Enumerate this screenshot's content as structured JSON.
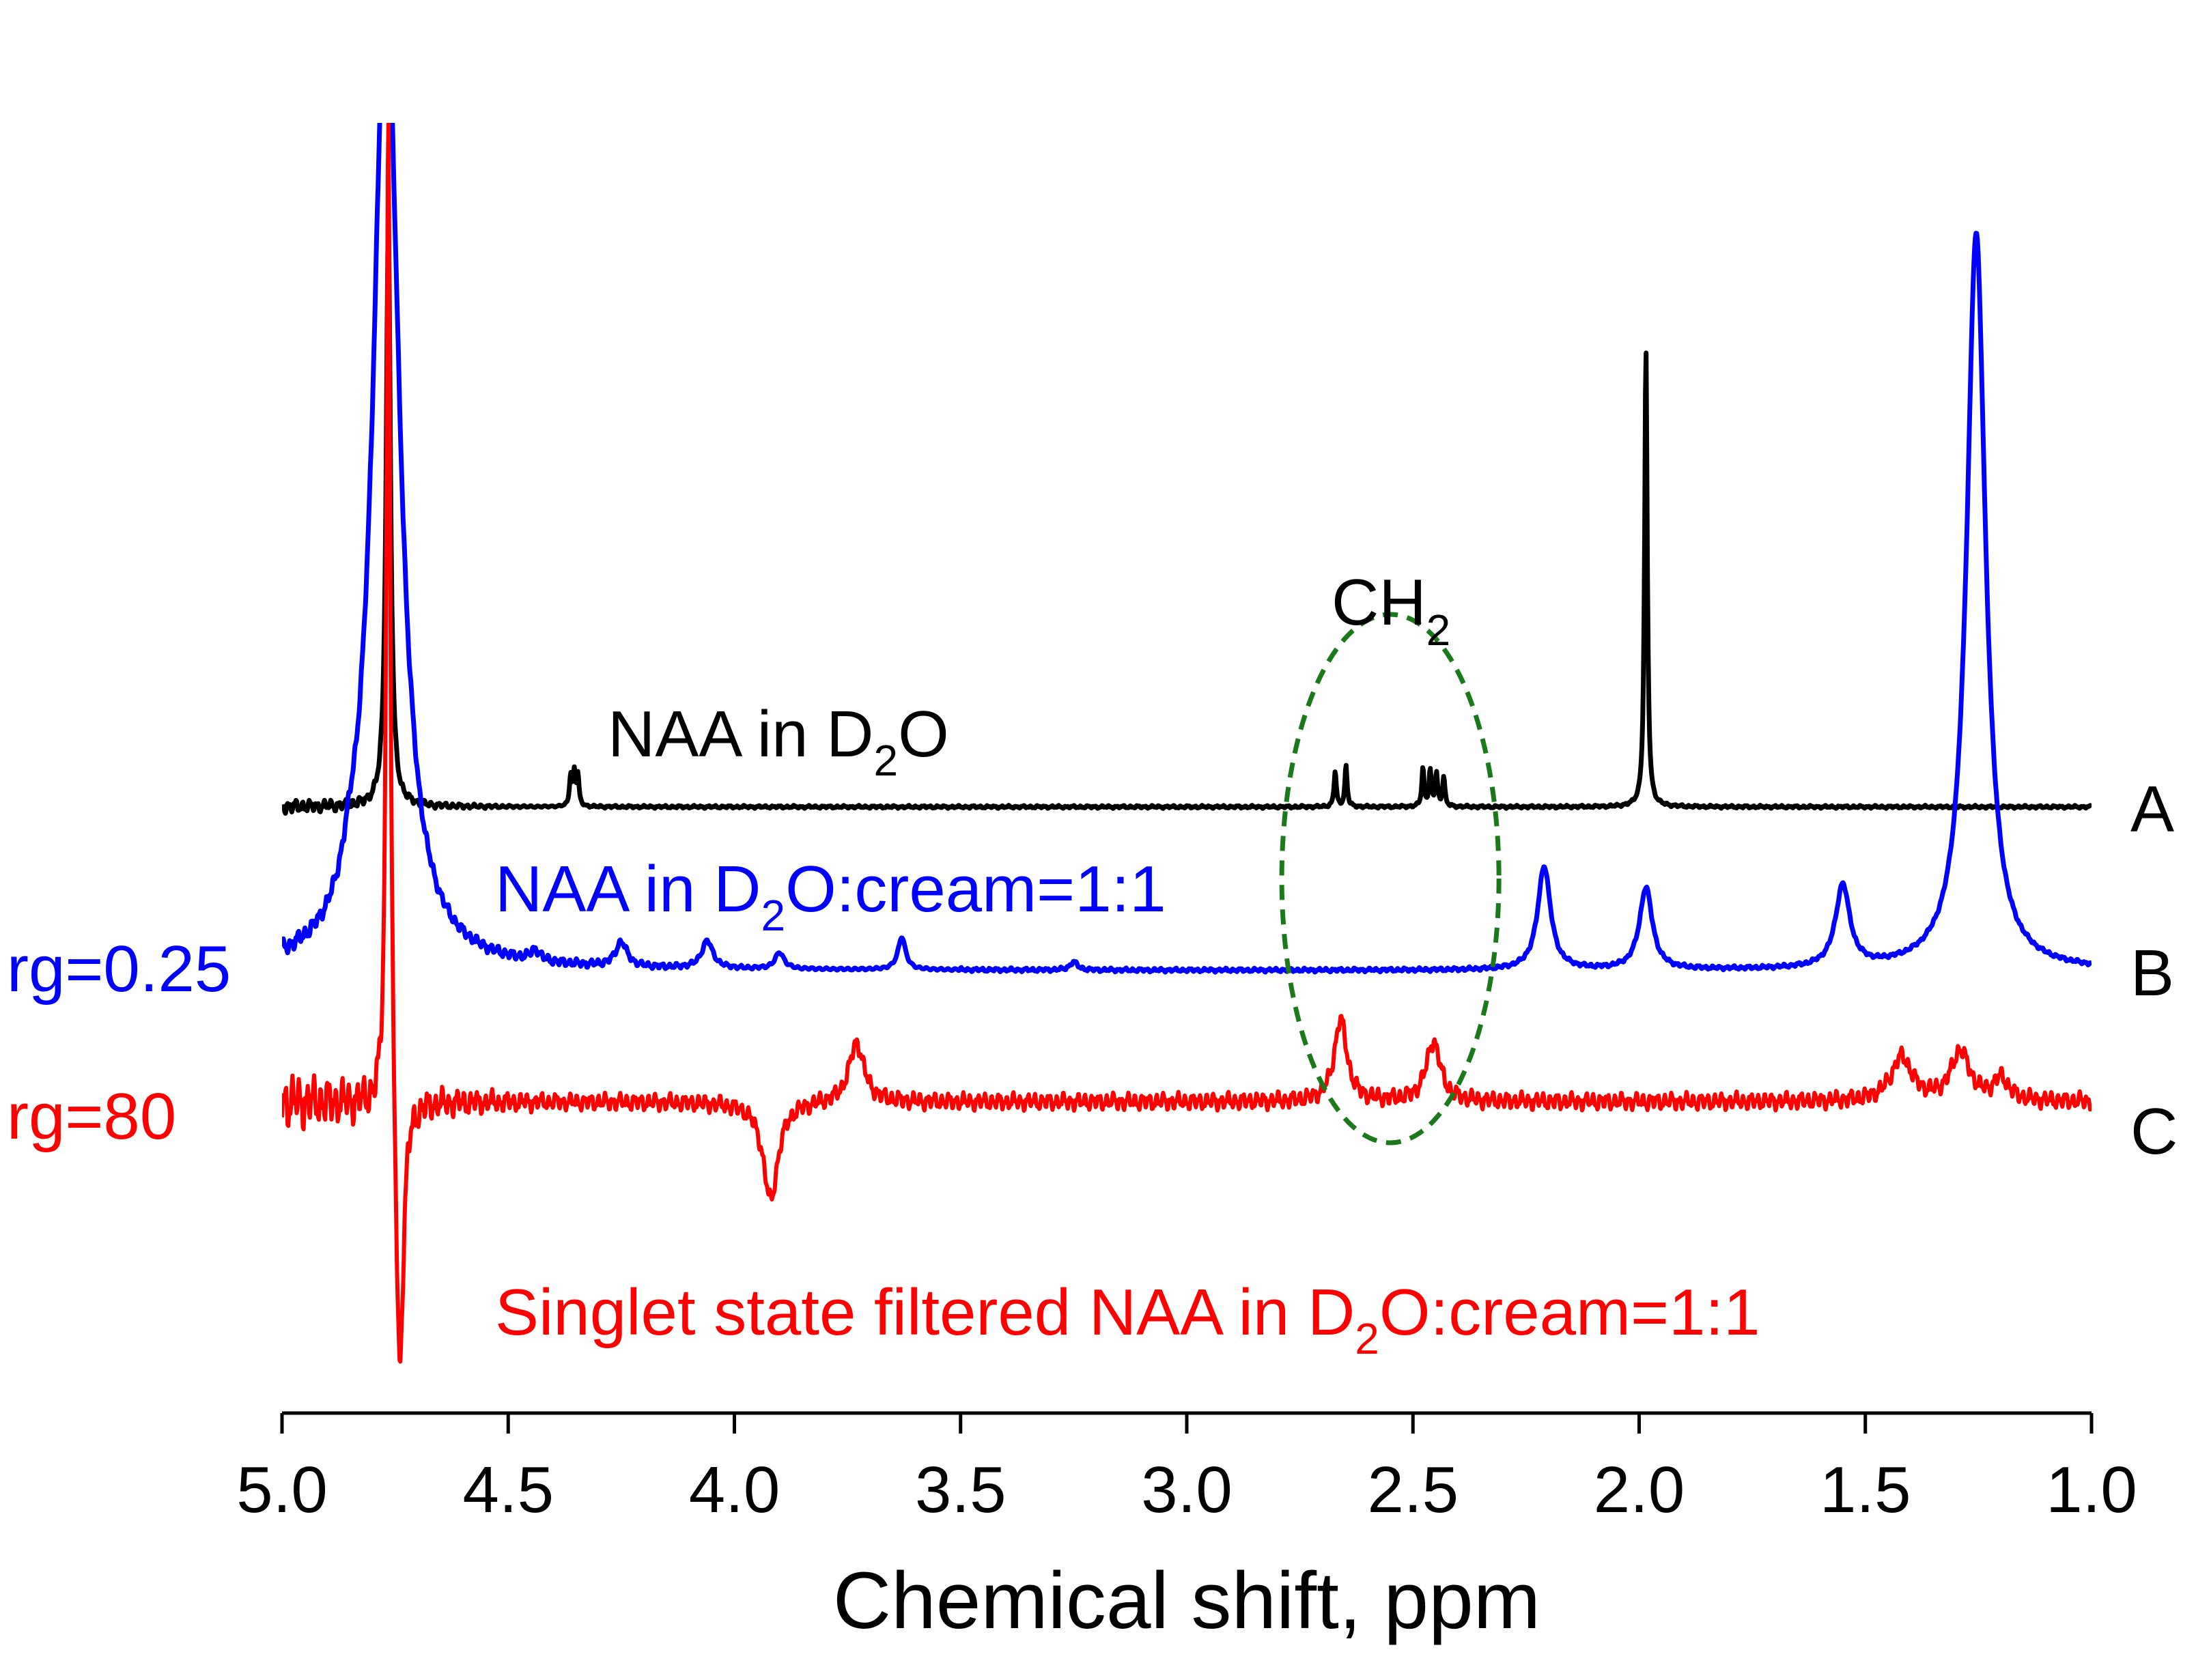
{
  "chart_data": {
    "type": "line",
    "title": "",
    "xlabel": "Chemical shift, ppm",
    "ylabel": "",
    "xlim": [
      5.0,
      1.0
    ],
    "x_reversed": true,
    "x_ticks": [
      "5.0",
      "4.5",
      "4.0",
      "3.5",
      "3.0",
      "2.5",
      "2.0",
      "1.5",
      "1.0"
    ],
    "grid": false,
    "legend": "none",
    "series": [
      {
        "name": "A",
        "label": "NAA in D",
        "label_sub": "2",
        "label_tail": "O",
        "gain_label": "",
        "color": "#000000",
        "baseline": 0,
        "peaks": [
          {
            "ppm": 4.765,
            "height": 1.05,
            "width": 0.006
          },
          {
            "ppm": 4.362,
            "height": 0.055,
            "width": 0.003
          },
          {
            "ppm": 4.354,
            "height": 0.06,
            "width": 0.003
          },
          {
            "ppm": 4.346,
            "height": 0.055,
            "width": 0.003
          },
          {
            "ppm": 2.672,
            "height": 0.065,
            "width": 0.003
          },
          {
            "ppm": 2.648,
            "height": 0.075,
            "width": 0.003
          },
          {
            "ppm": 2.478,
            "height": 0.07,
            "width": 0.003
          },
          {
            "ppm": 2.462,
            "height": 0.065,
            "width": 0.003
          },
          {
            "ppm": 2.448,
            "height": 0.06,
            "width": 0.003
          },
          {
            "ppm": 2.432,
            "height": 0.055,
            "width": 0.003
          },
          {
            "ppm": 1.985,
            "height": 0.84,
            "width": 0.0035
          }
        ]
      },
      {
        "name": "B",
        "label": "NAA in D",
        "label_sub": "2",
        "label_tail": "O:cream=1:1",
        "gain_label": "rg=0.25",
        "color": "#0000ff",
        "baseline": -0.3,
        "peaks": [
          {
            "ppm": 4.77,
            "height": 1.8,
            "width": 0.035
          },
          {
            "ppm": 4.85,
            "height": 0.04,
            "width": 0.02
          },
          {
            "ppm": 4.44,
            "height": 0.02,
            "width": 0.012
          },
          {
            "ppm": 4.25,
            "height": 0.045,
            "width": 0.015
          },
          {
            "ppm": 4.06,
            "height": 0.05,
            "width": 0.015
          },
          {
            "ppm": 3.9,
            "height": 0.03,
            "width": 0.012
          },
          {
            "ppm": 3.63,
            "height": 0.06,
            "width": 0.01
          },
          {
            "ppm": 3.25,
            "height": 0.015,
            "width": 0.01
          },
          {
            "ppm": 2.21,
            "height": 0.19,
            "width": 0.017
          },
          {
            "ppm": 1.985,
            "height": 0.15,
            "width": 0.017
          },
          {
            "ppm": 1.55,
            "height": 0.15,
            "width": 0.019
          },
          {
            "ppm": 1.255,
            "height": 1.35,
            "width": 0.025
          }
        ]
      },
      {
        "name": "C",
        "label": "Singlet state filtered NAA in D",
        "label_sub": "2",
        "label_tail": "O:cream=1:1",
        "gain_label": "rg=80",
        "color": "#ff0000",
        "baseline": -0.54,
        "peaks": [
          {
            "ppm": 4.765,
            "height": 1.9,
            "width": 0.005
          },
          {
            "ppm": 4.74,
            "height": -0.55,
            "width": 0.01
          },
          {
            "ppm": 3.92,
            "height": -0.18,
            "width": 0.02
          },
          {
            "ppm": 3.73,
            "height": 0.11,
            "width": 0.02
          },
          {
            "ppm": 2.66,
            "height": 0.15,
            "width": 0.017
          },
          {
            "ppm": 2.455,
            "height": 0.11,
            "width": 0.019
          },
          {
            "ppm": 1.42,
            "height": 0.08,
            "width": 0.028
          },
          {
            "ppm": 1.29,
            "height": 0.09,
            "width": 0.025
          },
          {
            "ppm": 1.2,
            "height": 0.04,
            "width": 0.02
          }
        ]
      }
    ],
    "annotations": [
      {
        "type": "ellipse",
        "text": "CH",
        "sub": "2",
        "center_ppm": 2.55,
        "width_ppm": 0.48,
        "color": "#1a7a1a",
        "style": "dashed"
      }
    ]
  }
}
